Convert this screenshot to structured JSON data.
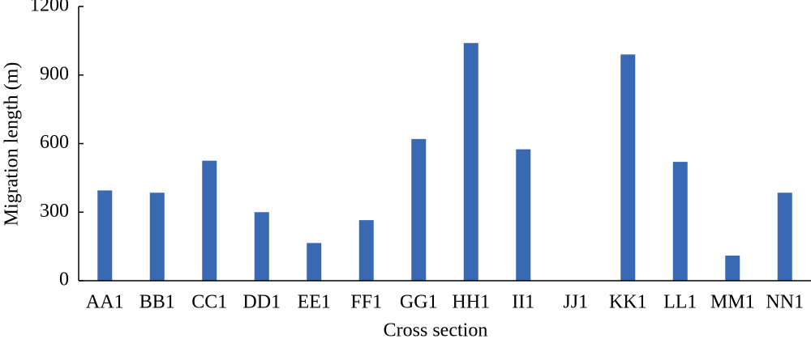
{
  "chart_data": {
    "type": "bar",
    "x_label": "Cross section",
    "y_label": "Migration length (m)",
    "categories": [
      "AA1",
      "BB1",
      "CC1",
      "DD1",
      "EE1",
      "FF1",
      "GG1",
      "HH1",
      "II1",
      "JJ1",
      "KK1",
      "LL1",
      "MM1",
      "NN1"
    ],
    "values": [
      395,
      385,
      525,
      300,
      165,
      265,
      620,
      1040,
      575,
      0,
      990,
      520,
      110,
      385
    ],
    "color": "#3a69b4",
    "ylim": [
      0,
      1200
    ],
    "yticks": [
      0,
      300,
      600,
      900,
      1200
    ],
    "grid": false
  }
}
